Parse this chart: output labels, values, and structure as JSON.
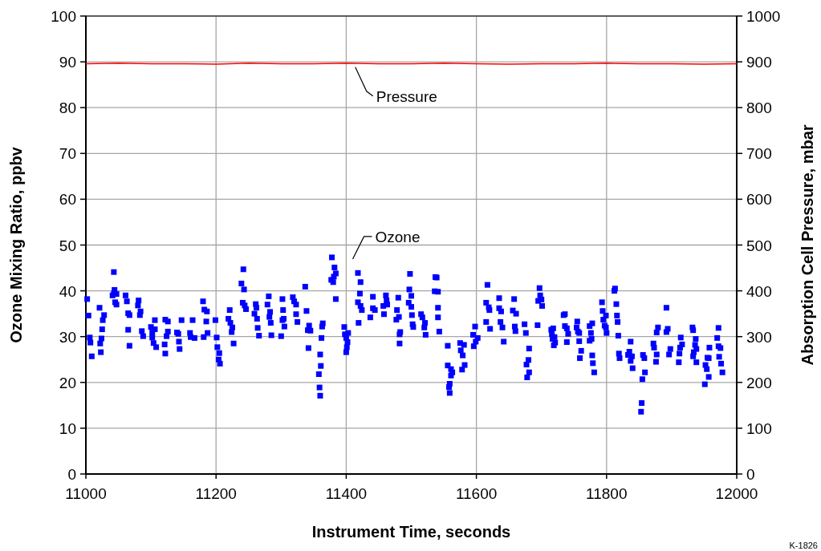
{
  "chart_data": {
    "type": "scatter",
    "xlabel": "Instrument Time, seconds",
    "ylabel": "Ozone Mixing Ratio, ppbv",
    "y2label": "Absorption Cell Pressure, mbar",
    "xlim": [
      11000,
      12000
    ],
    "xticks": [
      11000,
      11200,
      11400,
      11600,
      11800,
      12000
    ],
    "ylim": [
      0,
      100
    ],
    "yticks": [
      0,
      10,
      20,
      30,
      40,
      50,
      60,
      70,
      80,
      90,
      100
    ],
    "y2lim": [
      0,
      1000
    ],
    "y2ticks": [
      0,
      100,
      200,
      300,
      400,
      500,
      600,
      700,
      800,
      900,
      1000
    ],
    "grid": true,
    "marker": "square",
    "annotations": [
      "K-1826"
    ],
    "series": [
      {
        "name": "Ozone",
        "color": "#0000ff",
        "x": [
          11002,
          11004,
          11006,
          11007,
          11009,
          11021,
          11028,
          11026,
          11025,
          11024,
          11022,
          11023,
          11043,
          11044,
          11043,
          11041,
          11047,
          11045,
          11047,
          11061,
          11063,
          11065,
          11067,
          11065,
          11067,
          11081,
          11080,
          11084,
          11083,
          11086,
          11088,
          11100,
          11102,
          11106,
          11106,
          11102,
          11104,
          11108,
          11122,
          11126,
          11126,
          11124,
          11121,
          11122,
          11140,
          11142,
          11143,
          11144,
          11147,
          11164,
          11160,
          11161,
          11167,
          11180,
          11182,
          11186,
          11185,
          11187,
          11181,
          11199,
          11201,
          11202,
          11205,
          11204,
          11206,
          11221,
          11219,
          11222,
          11225,
          11224,
          11227,
          11242,
          11239,
          11243,
          11241,
          11244,
          11246,
          11261,
          11262,
          11259,
          11263,
          11264,
          11266,
          11281,
          11279,
          11283,
          11282,
          11284,
          11285,
          11302,
          11303,
          11304,
          11302,
          11305,
          11300,
          11318,
          11320,
          11323,
          11323,
          11325,
          11337,
          11339,
          11343,
          11341,
          11345,
          11342,
          11364,
          11363,
          11362,
          11360,
          11361,
          11358,
          11359,
          11360,
          11378,
          11382,
          11384,
          11381,
          11377,
          11380,
          11384,
          11397,
          11398,
          11403,
          11400,
          11402,
          11401,
          11400,
          11418,
          11422,
          11421,
          11418,
          11422,
          11424,
          11419,
          11441,
          11441,
          11444,
          11437,
          11461,
          11462,
          11463,
          11457,
          11458,
          11480,
          11478,
          11481,
          11477,
          11483,
          11482,
          11482,
          11498,
          11497,
          11500,
          11496,
          11500,
          11501,
          11502,
          11503,
          11515,
          11517,
          11521,
          11520,
          11522,
          11537,
          11539,
          11536,
          11541,
          11541,
          11541,
          11543,
          11556,
          11556,
          11561,
          11563,
          11561,
          11559,
          11558,
          11559,
          11575,
          11581,
          11576,
          11579,
          11582,
          11578,
          11598,
          11595,
          11602,
          11599,
          11596,
          11617,
          11615,
          11619,
          11620,
          11615,
          11621,
          11635,
          11635,
          11638,
          11637,
          11640,
          11642,
          11658,
          11656,
          11661,
          11659,
          11660,
          11674,
          11676,
          11681,
          11680,
          11677,
          11681,
          11678,
          11697,
          11698,
          11695,
          11700,
          11701,
          11694,
          11715,
          11718,
          11716,
          11720,
          11717,
          11721,
          11719,
          11734,
          11736,
          11736,
          11739,
          11741,
          11739,
          11755,
          11754,
          11756,
          11758,
          11758,
          11761,
          11759,
          11778,
          11774,
          11776,
          11777,
          11774,
          11778,
          11779,
          11781,
          11793,
          11794,
          11799,
          11795,
          11797,
          11799,
          11800,
          11813,
          11812,
          11815,
          11816,
          11817,
          11818,
          11819,
          11820,
          11837,
          11835,
          11833,
          11839,
          11837,
          11840,
          11856,
          11858,
          11859,
          11855,
          11854,
          11853,
          11872,
          11873,
          11877,
          11876,
          11879,
          11877,
          11892,
          11894,
          11892,
          11898,
          11896,
          11914,
          11916,
          11913,
          11912,
          11911,
          11932,
          11933,
          11937,
          11936,
          11938,
          11934,
          11933,
          11938,
          11958,
          11955,
          11957,
          11952,
          11954,
          11957,
          11951,
          11972,
          11970,
          11972,
          11975,
          11973,
          11976,
          11978
        ],
        "values": [
          38.2,
          34.6,
          29.8,
          28.7,
          25.7,
          36.3,
          34.7,
          33.6,
          31.6,
          29.6,
          28.5,
          26.6,
          44.1,
          40.2,
          39.4,
          39.0,
          39.3,
          37.5,
          37.0,
          39.0,
          37.7,
          35.1,
          34.7,
          31.5,
          28.0,
          37.9,
          36.8,
          35.5,
          34.7,
          31.2,
          30.1,
          32.1,
          30.9,
          33.6,
          31.6,
          29.8,
          28.6,
          27.7,
          33.7,
          33.3,
          31.1,
          30.1,
          28.3,
          26.3,
          30.9,
          30.6,
          28.9,
          27.3,
          33.6,
          33.6,
          30.8,
          29.9,
          29.7,
          37.7,
          35.9,
          35.5,
          33.3,
          30.8,
          29.9,
          33.6,
          29.8,
          27.7,
          26.4,
          25.0,
          24.1,
          35.8,
          33.9,
          33.0,
          32.0,
          31.0,
          28.5,
          44.7,
          41.6,
          40.3,
          37.4,
          36.8,
          36.0,
          37.1,
          36.3,
          35.0,
          33.9,
          31.9,
          30.2,
          38.8,
          37.0,
          35.4,
          34.3,
          33.0,
          30.3,
          38.2,
          35.8,
          33.9,
          33.6,
          32.2,
          30.1,
          38.6,
          37.7,
          37.0,
          34.9,
          33.2,
          40.9,
          35.6,
          32.4,
          31.4,
          31.3,
          27.5,
          32.9,
          32.2,
          29.7,
          26.1,
          23.6,
          21.8,
          18.9,
          17.1,
          47.3,
          45.1,
          43.8,
          43.1,
          42.4,
          41.9,
          38.2,
          32.1,
          30.5,
          30.8,
          29.7,
          28.8,
          27.7,
          26.6,
          43.9,
          41.9,
          39.4,
          37.5,
          36.7,
          35.8,
          33.0,
          38.7,
          36.2,
          35.8,
          34.2,
          39.0,
          37.9,
          37.0,
          36.7,
          34.9,
          38.5,
          35.8,
          34.3,
          33.7,
          31.0,
          30.5,
          28.5,
          43.7,
          40.3,
          38.9,
          37.4,
          36.5,
          34.7,
          32.7,
          32.1,
          34.9,
          34.2,
          33.0,
          32.0,
          30.4,
          43.0,
          42.9,
          39.9,
          39.8,
          36.3,
          34.2,
          31.1,
          28.0,
          23.7,
          22.9,
          22.2,
          21.5,
          19.7,
          19.0,
          17.7,
          28.6,
          28.2,
          27.0,
          25.9,
          23.8,
          22.8,
          32.2,
          30.4,
          29.7,
          28.9,
          27.9,
          41.3,
          37.4,
          36.4,
          35.8,
          33.2,
          31.7,
          38.4,
          36.2,
          35.5,
          33.2,
          32.0,
          28.9,
          38.2,
          35.7,
          35.0,
          32.2,
          31.2,
          32.7,
          30.8,
          27.4,
          24.9,
          23.9,
          22.2,
          21.1,
          40.6,
          39.0,
          37.8,
          38.1,
          36.7,
          32.5,
          31.5,
          31.8,
          30.5,
          29.9,
          29.5,
          28.7,
          28.1,
          34.7,
          34.9,
          32.3,
          31.8,
          30.6,
          28.8,
          33.3,
          32.0,
          31.1,
          30.8,
          29.0,
          26.9,
          25.3,
          32.9,
          32.3,
          30.8,
          29.5,
          29.1,
          25.9,
          24.2,
          22.2,
          37.5,
          35.6,
          34.6,
          33.7,
          32.4,
          32.0,
          30.8,
          40.5,
          40.0,
          37.1,
          34.6,
          33.2,
          30.2,
          26.3,
          25.3,
          28.9,
          26.7,
          26.0,
          25.7,
          24.7,
          23.1,
          26.0,
          25.3,
          22.2,
          20.7,
          15.5,
          13.6,
          28.5,
          27.6,
          26.1,
          24.5,
          32.0,
          30.9,
          36.3,
          31.7,
          31.0,
          27.3,
          26.1,
          29.8,
          28.3,
          27.6,
          26.3,
          24.4,
          32.0,
          31.4,
          29.5,
          28.2,
          27.3,
          26.6,
          25.7,
          24.4,
          27.6,
          25.4,
          25.3,
          23.8,
          22.9,
          21.2,
          19.6,
          31.9,
          29.7,
          27.9,
          27.5,
          25.6,
          24.1,
          22.2
        ]
      },
      {
        "name": "Pressure",
        "type": "line",
        "axis": "y2",
        "color": "#ff0000",
        "marker": "none",
        "x": [
          11000,
          11050,
          11100,
          11150,
          11200,
          11250,
          11300,
          11350,
          11400,
          11450,
          11500,
          11550,
          11600,
          11650,
          11700,
          11750,
          11800,
          11850,
          11900,
          11950,
          12000
        ],
        "values": [
          896,
          897,
          896,
          896,
          895,
          897,
          896,
          896,
          897,
          896,
          896,
          897,
          896,
          895,
          896,
          896,
          897,
          896,
          896,
          895,
          896
        ]
      }
    ]
  }
}
